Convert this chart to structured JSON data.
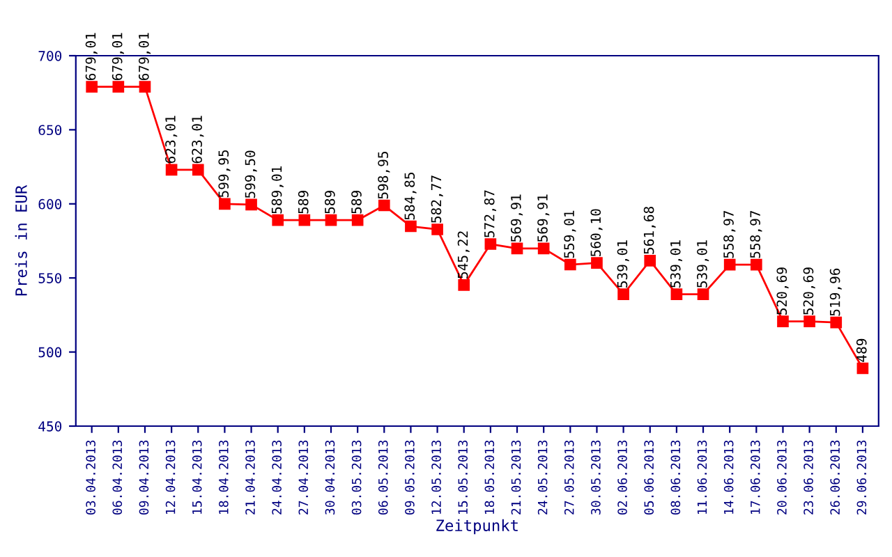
{
  "chart_data": {
    "type": "line",
    "xlabel": "Zeitpunkt",
    "ylabel": "Preis in EUR",
    "categories": [
      "03.04.2013",
      "06.04.2013",
      "09.04.2013",
      "12.04.2013",
      "15.04.2013",
      "18.04.2013",
      "21.04.2013",
      "24.04.2013",
      "27.04.2013",
      "30.04.2013",
      "03.05.2013",
      "06.05.2013",
      "09.05.2013",
      "12.05.2013",
      "15.05.2013",
      "18.05.2013",
      "21.05.2013",
      "24.05.2013",
      "27.05.2013",
      "30.05.2013",
      "02.06.2013",
      "05.06.2013",
      "08.06.2013",
      "11.06.2013",
      "14.06.2013",
      "17.06.2013",
      "20.06.2013",
      "23.06.2013",
      "26.06.2013",
      "29.06.2013"
    ],
    "series": [
      {
        "color": "#ff0000",
        "values": [
          679.01,
          679.01,
          679.01,
          623.01,
          623.01,
          599.95,
          599.5,
          589.01,
          589,
          589,
          589,
          598.95,
          584.85,
          582.77,
          545.22,
          572.87,
          569.91,
          569.91,
          559.01,
          560.1,
          539.01,
          561.68,
          539.01,
          539.01,
          558.97,
          558.97,
          520.69,
          520.69,
          519.96,
          489
        ],
        "value_labels": [
          "679,01",
          "679,01",
          "679,01",
          "623,01",
          "623,01",
          "599,95",
          "599,50",
          "589,01",
          "589",
          "589",
          "589",
          "598,95",
          "584,85",
          "582,77",
          "545,22",
          "572,87",
          "569,91",
          "569,91",
          "559,01",
          "560,10",
          "539,01",
          "561,68",
          "539,01",
          "539,01",
          "558,97",
          "558,97",
          "520,69",
          "520,69",
          "519,96",
          "489"
        ]
      }
    ],
    "ylim": [
      450,
      700
    ],
    "yticks": [
      450,
      500,
      550,
      600,
      650,
      700
    ],
    "grid": false,
    "legend": false,
    "marker": "square",
    "line_style": "solid"
  }
}
